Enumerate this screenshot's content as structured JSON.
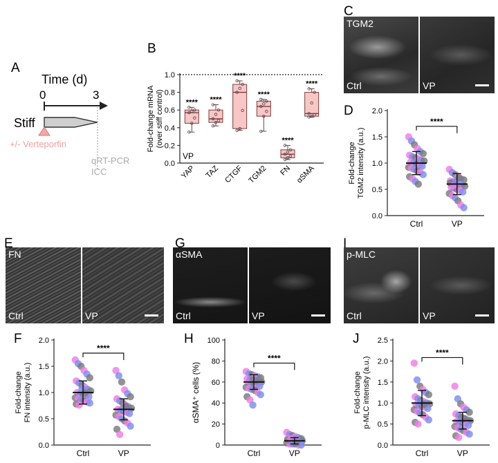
{
  "panel_labels": {
    "a": "A",
    "b": "B",
    "c": "C",
    "d": "D",
    "e": "E",
    "f": "F",
    "g": "G",
    "h": "H",
    "i": "I",
    "j": "J"
  },
  "timeline": {
    "axis_title": "Time (d)",
    "t_start": "0",
    "t_end": "3",
    "condition": "Stiff",
    "treatment": "+/- Verteporfin",
    "readout_1": "qRT-PCR",
    "readout_2": "ICC"
  },
  "micrographs": {
    "c": {
      "stain": "TGM2",
      "left": "Ctrl",
      "right": "VP"
    },
    "e": {
      "stain": "FN",
      "left": "Ctrl",
      "right": "VP"
    },
    "g": {
      "stain": "αSMA",
      "left": "Ctrl",
      "right": "VP"
    },
    "i": {
      "stain": "p-MLC",
      "left": "Ctrl",
      "right": "VP"
    }
  },
  "colors": {
    "box_fill": "#f9c6c6",
    "box_stroke": "#7a3c3c",
    "dot_pink": "#f07ce8",
    "dot_blue": "#7b8ef0",
    "dot_grey": "#7a7a7a",
    "wedge": "#c8c8c8",
    "treatment_pink": "#f2a6a6"
  },
  "chart_data": [
    {
      "panel": "B",
      "type": "box",
      "ylabel": "Fold-change mRNA (over stiff control)",
      "ylim": [
        0,
        1.0
      ],
      "yticks": [
        "0.0",
        "0.2",
        "0.4",
        "0.6",
        "0.8",
        "1.0"
      ],
      "reference_line": 1.0,
      "inset_label": "VP",
      "categories": [
        "YAP",
        "TAZ",
        "CTGF",
        "TGM2",
        "FN",
        "αSMA"
      ],
      "significance": [
        "****",
        "****",
        "****",
        "****",
        "****",
        "****"
      ],
      "boxes": [
        {
          "min": 0.35,
          "q1": 0.45,
          "median": 0.57,
          "q3": 0.6,
          "max": 0.63
        },
        {
          "min": 0.42,
          "q1": 0.46,
          "median": 0.5,
          "q3": 0.6,
          "max": 0.66
        },
        {
          "min": 0.37,
          "q1": 0.39,
          "median": 0.8,
          "q3": 0.89,
          "max": 0.93
        },
        {
          "min": 0.36,
          "q1": 0.53,
          "median": 0.64,
          "q3": 0.7,
          "max": 0.72
        },
        {
          "min": 0.04,
          "q1": 0.06,
          "median": 0.1,
          "q3": 0.15,
          "max": 0.2
        },
        {
          "min": 0.52,
          "q1": 0.53,
          "median": 0.56,
          "q3": 0.8,
          "max": 0.84
        }
      ]
    },
    {
      "panel": "D",
      "type": "scatter",
      "ylabel": "Fold-change TGM2 intensity (a.u.)",
      "ylim": [
        0,
        2.0
      ],
      "yticks": [
        "0.0",
        "0.5",
        "1.0",
        "1.5",
        "2.0"
      ],
      "categories": [
        "Ctrl",
        "VP"
      ],
      "means": [
        1.0,
        0.6
      ],
      "sd": [
        0.22,
        0.2
      ],
      "significance": "****",
      "groups": [
        [
          1.5,
          1.42,
          1.35,
          1.28,
          1.22,
          1.18,
          1.15,
          1.12,
          1.1,
          1.08,
          1.05,
          1.04,
          1.02,
          1.0,
          0.98,
          0.96,
          0.94,
          0.92,
          0.9,
          0.88,
          0.85,
          0.82,
          0.78,
          0.74,
          0.7,
          0.65,
          0.6
        ],
        [
          0.88,
          0.82,
          0.78,
          0.74,
          0.7,
          0.68,
          0.66,
          0.64,
          0.62,
          0.6,
          0.58,
          0.56,
          0.54,
          0.52,
          0.5,
          0.48,
          0.45,
          0.42,
          0.38,
          0.34,
          0.28,
          0.2,
          0.15,
          0.62,
          0.57,
          0.66,
          0.72
        ]
      ]
    },
    {
      "panel": "F",
      "type": "scatter",
      "ylabel": "Fold-change FN intensity (a.u.)",
      "ylim": [
        0,
        2.0
      ],
      "yticks": [
        "0.0",
        "0.5",
        "1.0",
        "1.5",
        "2.0"
      ],
      "categories": [
        "Ctrl",
        "VP"
      ],
      "means": [
        1.0,
        0.68
      ],
      "sd": [
        0.22,
        0.2
      ],
      "significance": "****",
      "groups": [
        [
          1.62,
          1.55,
          1.5,
          1.42,
          1.35,
          1.28,
          1.22,
          1.18,
          1.14,
          1.1,
          1.06,
          1.03,
          1.0,
          0.98,
          0.96,
          0.94,
          0.92,
          0.9,
          0.88,
          0.86,
          0.84,
          0.82,
          0.8,
          0.78,
          0.76,
          1.08,
          0.99
        ],
        [
          1.42,
          1.32,
          1.2,
          1.05,
          0.98,
          0.92,
          0.88,
          0.84,
          0.8,
          0.76,
          0.73,
          0.7,
          0.68,
          0.66,
          0.64,
          0.62,
          0.6,
          0.57,
          0.54,
          0.5,
          0.46,
          0.42,
          0.36,
          0.3,
          0.2,
          0.69,
          0.74
        ]
      ]
    },
    {
      "panel": "H",
      "type": "scatter",
      "ylabel": "αSMA⁺ cells (%)",
      "ylim": [
        0,
        100
      ],
      "yticks": [
        "0",
        "20",
        "40",
        "60",
        "80",
        "100"
      ],
      "categories": [
        "Ctrl",
        "VP"
      ],
      "means": [
        60,
        4
      ],
      "sd": [
        7,
        3
      ],
      "significance": "****",
      "groups": [
        [
          70,
          68,
          67,
          66,
          65,
          64,
          63,
          62,
          62,
          61,
          60,
          60,
          59,
          58,
          58,
          57,
          56,
          55,
          54,
          53,
          52,
          50,
          48,
          46,
          43,
          38,
          61
        ],
        [
          12,
          10,
          9,
          8,
          7,
          6,
          6,
          5,
          5,
          4,
          4,
          4,
          3,
          3,
          3,
          2,
          2,
          2,
          1,
          1,
          1,
          0,
          0,
          5,
          6,
          3,
          2
        ]
      ]
    },
    {
      "panel": "J",
      "type": "scatter",
      "ylabel": "Fold-change p-MLC intensity (a.u.)",
      "ylim": [
        0,
        2.5
      ],
      "yticks": [
        "0.0",
        "0.5",
        "1.0",
        "1.5",
        "2.0",
        "2.5"
      ],
      "categories": [
        "Ctrl",
        "VP"
      ],
      "means": [
        1.0,
        0.58
      ],
      "sd": [
        0.3,
        0.2
      ],
      "significance": "****",
      "groups": [
        [
          1.95,
          1.55,
          1.4,
          1.32,
          1.25,
          1.2,
          1.15,
          1.1,
          1.06,
          1.03,
          1.0,
          0.98,
          0.96,
          0.94,
          0.92,
          0.9,
          0.87,
          0.84,
          0.8,
          0.76,
          0.72,
          0.66,
          0.6,
          0.54,
          0.5,
          1.01,
          0.97
        ],
        [
          1.4,
          1.1,
          0.98,
          0.9,
          0.84,
          0.78,
          0.74,
          0.7,
          0.66,
          0.62,
          0.6,
          0.58,
          0.56,
          0.54,
          0.52,
          0.5,
          0.47,
          0.44,
          0.41,
          0.38,
          0.34,
          0.3,
          0.26,
          0.22,
          0.18,
          0.59,
          0.63
        ]
      ]
    }
  ]
}
